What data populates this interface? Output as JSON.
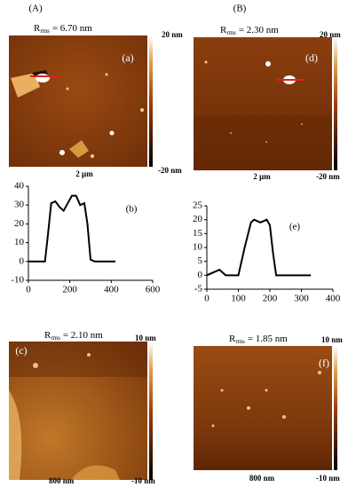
{
  "panels": {
    "left": "(A)",
    "right": "(B)"
  },
  "images": [
    {
      "label": "(a)",
      "rms_symbol": "R",
      "rms_sub": "rms",
      "rms_value": "= 6.70 nm",
      "scale": "2 µm",
      "cbar_max": "20 nm",
      "cbar_min": "-20 nm"
    },
    {
      "label": "(d)",
      "rms_symbol": "R",
      "rms_sub": "rms",
      "rms_value": "= 2.30 nm",
      "scale": "2 µm",
      "cbar_max": "20 nm",
      "cbar_min": "-20 nm"
    },
    {
      "label": "(c)",
      "rms_symbol": "R",
      "rms_sub": "rms",
      "rms_value": "= 2.10 nm",
      "scale": "800 nm",
      "cbar_max": "10 nm",
      "cbar_min": "-10 nm"
    },
    {
      "label": "(f)",
      "rms_symbol": "R",
      "rms_sub": "rms",
      "rms_value": "= 1.85 nm",
      "scale": "800 nm",
      "cbar_max": "10 nm",
      "cbar_min": "-10 nm"
    }
  ],
  "chart_data": [
    {
      "type": "line",
      "annotation": "(b)",
      "color": "#000000",
      "x": [
        0,
        40,
        80,
        95,
        110,
        130,
        150,
        170,
        190,
        210,
        230,
        250,
        270,
        285,
        300,
        320,
        360,
        420
      ],
      "values": [
        0,
        0,
        0,
        15,
        31,
        32,
        29,
        27,
        31,
        35,
        35,
        30,
        31,
        20,
        1,
        0,
        0,
        0
      ],
      "xlim": [
        0,
        600
      ],
      "xticks": [
        0,
        200,
        400,
        600
      ],
      "ylim": [
        -10,
        40
      ],
      "yticks": [
        -10,
        0,
        10,
        20,
        30,
        40
      ]
    },
    {
      "type": "line",
      "annotation": "(e)",
      "color": "#000000",
      "x": [
        0,
        20,
        40,
        60,
        80,
        100,
        120,
        140,
        150,
        170,
        190,
        200,
        210,
        220,
        240,
        280,
        330
      ],
      "values": [
        0,
        1,
        2,
        0,
        0,
        0,
        10,
        19,
        20,
        19,
        20,
        18,
        8,
        0,
        0,
        0,
        0
      ],
      "xlim": [
        0,
        400
      ],
      "xticks": [
        0,
        100,
        200,
        300,
        400
      ],
      "ylim": [
        -5,
        25
      ],
      "yticks": [
        -5,
        0,
        5,
        10,
        15,
        20,
        25
      ]
    }
  ]
}
